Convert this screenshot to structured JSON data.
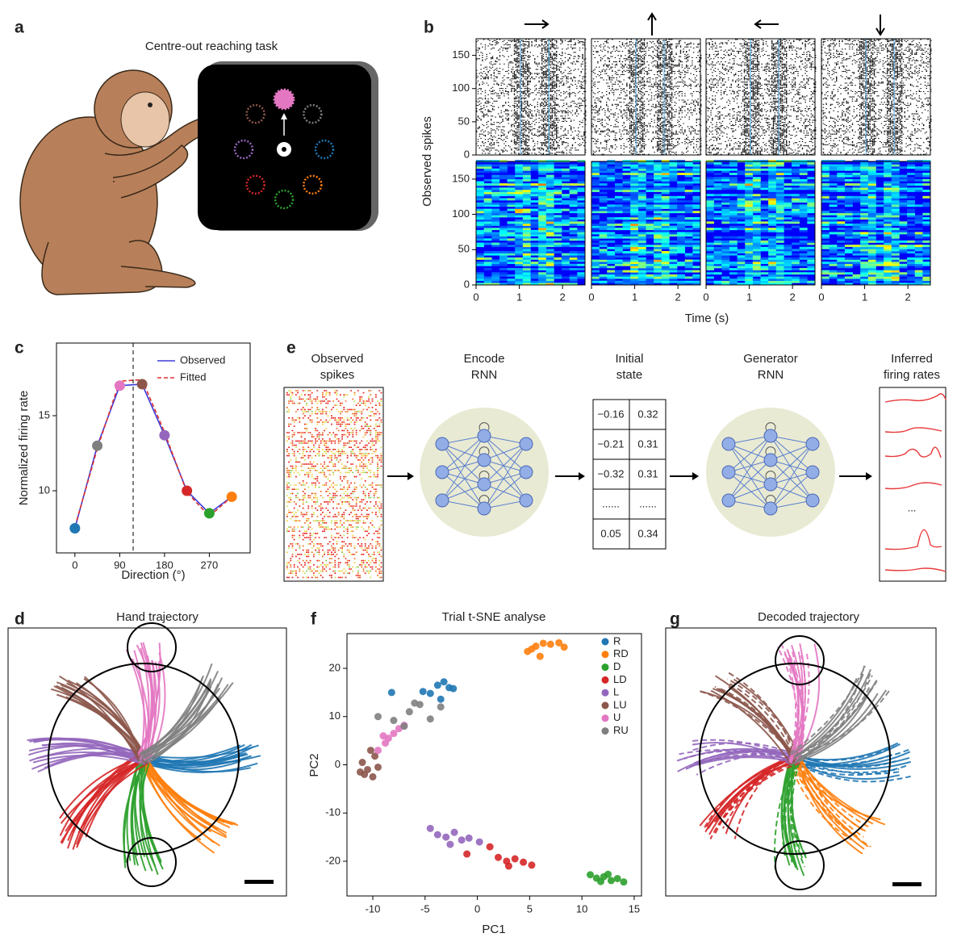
{
  "panel_labels": [
    "a",
    "b",
    "c",
    "d",
    "e",
    "f",
    "g"
  ],
  "panel_a": {
    "title": "Centre-out reaching task"
  },
  "panel_d": {
    "title": "Hand trajectory"
  },
  "panel_g": {
    "title": "Decoded trajectory"
  },
  "panel_e": {
    "observed_spikes": [
      "Observed",
      "spikes"
    ],
    "encoder": [
      "Encode",
      "RNN"
    ],
    "initial_state": [
      "Initial",
      "state"
    ],
    "generator": [
      "Generator",
      "RNN"
    ],
    "inferred": [
      "Inferred",
      "firing rates"
    ],
    "state_table": [
      [
        "−0.16",
        "0.32"
      ],
      [
        "−0.21",
        "0.31"
      ],
      [
        "−0.32",
        "0.31"
      ],
      [
        "......",
        "......"
      ],
      [
        "0.05",
        "0.34"
      ]
    ],
    "ellipsis": "..."
  },
  "chart_data": [
    {
      "type": "raster",
      "ylabel": "Observed spikes",
      "xlabel": "Time (s)",
      "ylim": [
        0,
        175
      ],
      "yticks": [
        0,
        50,
        100,
        150
      ],
      "xlim": [
        0,
        2.52
      ],
      "xticks": [
        0,
        1,
        2
      ],
      "event_lines": [
        1.03,
        1.68
      ]
    },
    {
      "type": "line",
      "ylabel": "Normalized firing rate",
      "xlabel": "Direction (°)",
      "x": [
        0,
        45,
        90,
        135,
        180,
        225,
        270,
        315
      ],
      "series": [
        {
          "name": "Observed",
          "color": "#3b3bdc",
          "values": [
            7.5,
            13,
            17,
            17.1,
            13.7,
            10,
            8.5,
            9.6
          ]
        },
        {
          "name": "Fitted",
          "color": "#e03030",
          "values": [
            7.6,
            12.8,
            17.3,
            17.4,
            13.9,
            9.9,
            8.3,
            9.6
          ]
        }
      ],
      "point_colors": [
        "#1f77b4",
        "#7f7f7f",
        "#e377c2",
        "#8c564b",
        "#9467bd",
        "#d62728",
        "#2ca02c",
        "#ff7f0e"
      ],
      "preferred_direction": 117,
      "xlim": [
        -37,
        352
      ],
      "xticks": [
        0,
        90,
        180,
        270
      ],
      "ylim": [
        5.86,
        19.84
      ],
      "yticks": [
        10,
        15
      ],
      "legend": "upper right"
    },
    {
      "type": "scatter",
      "title": "Trial t-SNE analyse",
      "xlabel": "PC1",
      "ylabel": "PC2",
      "xlim": [
        -12.47,
        15.7
      ],
      "xticks": [
        -10,
        -5,
        0,
        5,
        10,
        15
      ],
      "ylim": [
        -27.2,
        27.2
      ],
      "yticks": [
        -20,
        -10,
        0,
        10,
        20
      ],
      "legend": "upper right",
      "series": [
        {
          "name": "R",
          "color": "#1f77b4",
          "x": [
            -4.5,
            -3.8,
            -3.2,
            -2.7,
            -5.2,
            -3.5,
            -2.3,
            -8.2
          ],
          "values": [
            14.8,
            16.5,
            17.2,
            16.0,
            15.2,
            13.6,
            15.8,
            15.0
          ]
        },
        {
          "name": "RD",
          "color": "#ff7f0e",
          "x": [
            4.8,
            5.6,
            6.3,
            7.0,
            7.8,
            6.0,
            5.2,
            8.3
          ],
          "values": [
            23.5,
            24.6,
            25.2,
            25.0,
            25.3,
            22.5,
            24.0,
            24.4
          ]
        },
        {
          "name": "D",
          "color": "#2ca02c",
          "x": [
            10.8,
            11.4,
            12.1,
            12.8,
            13.4,
            14.0,
            12.5,
            11.8
          ],
          "values": [
            -22.8,
            -23.5,
            -23.2,
            -24.0,
            -23.6,
            -24.3,
            -22.7,
            -24.2
          ]
        },
        {
          "name": "LD",
          "color": "#d62728",
          "x": [
            -1.0,
            1.2,
            2.0,
            2.8,
            3.6,
            4.4,
            5.2,
            3.0
          ],
          "values": [
            -18.5,
            -17.0,
            -19.2,
            -20.0,
            -19.5,
            -20.2,
            -20.8,
            -21.0
          ]
        },
        {
          "name": "L",
          "color": "#9467bd",
          "x": [
            -4.5,
            -3.8,
            -3.0,
            -2.2,
            -1.5,
            -0.8,
            0.2,
            -2.6
          ],
          "values": [
            -13.2,
            -14.5,
            -15.0,
            -14.0,
            -15.6,
            -15.2,
            -16.0,
            -16.5
          ]
        },
        {
          "name": "LU",
          "color": "#8c564b",
          "x": [
            -11.0,
            -10.5,
            -10.0,
            -9.8,
            -10.8,
            -9.5,
            -10.2,
            -11.2
          ],
          "values": [
            0.5,
            -1.0,
            -2.5,
            1.8,
            -2.0,
            -0.5,
            3.0,
            -1.5
          ]
        },
        {
          "name": "U",
          "color": "#e377c2",
          "x": [
            -9.5,
            -8.8,
            -8.0,
            -7.5,
            -8.5,
            -9.0,
            -7.0
          ],
          "values": [
            3.0,
            4.5,
            6.5,
            7.5,
            5.5,
            6.0,
            8.2
          ]
        },
        {
          "name": "RU",
          "color": "#7f7f7f",
          "x": [
            -9.5,
            -8.0,
            -6.5,
            -5.5,
            -4.5,
            -3.5,
            -7.0,
            -6.0
          ],
          "values": [
            10.0,
            9.2,
            11.0,
            12.5,
            9.5,
            12.0,
            8.0,
            12.8
          ]
        }
      ]
    }
  ]
}
